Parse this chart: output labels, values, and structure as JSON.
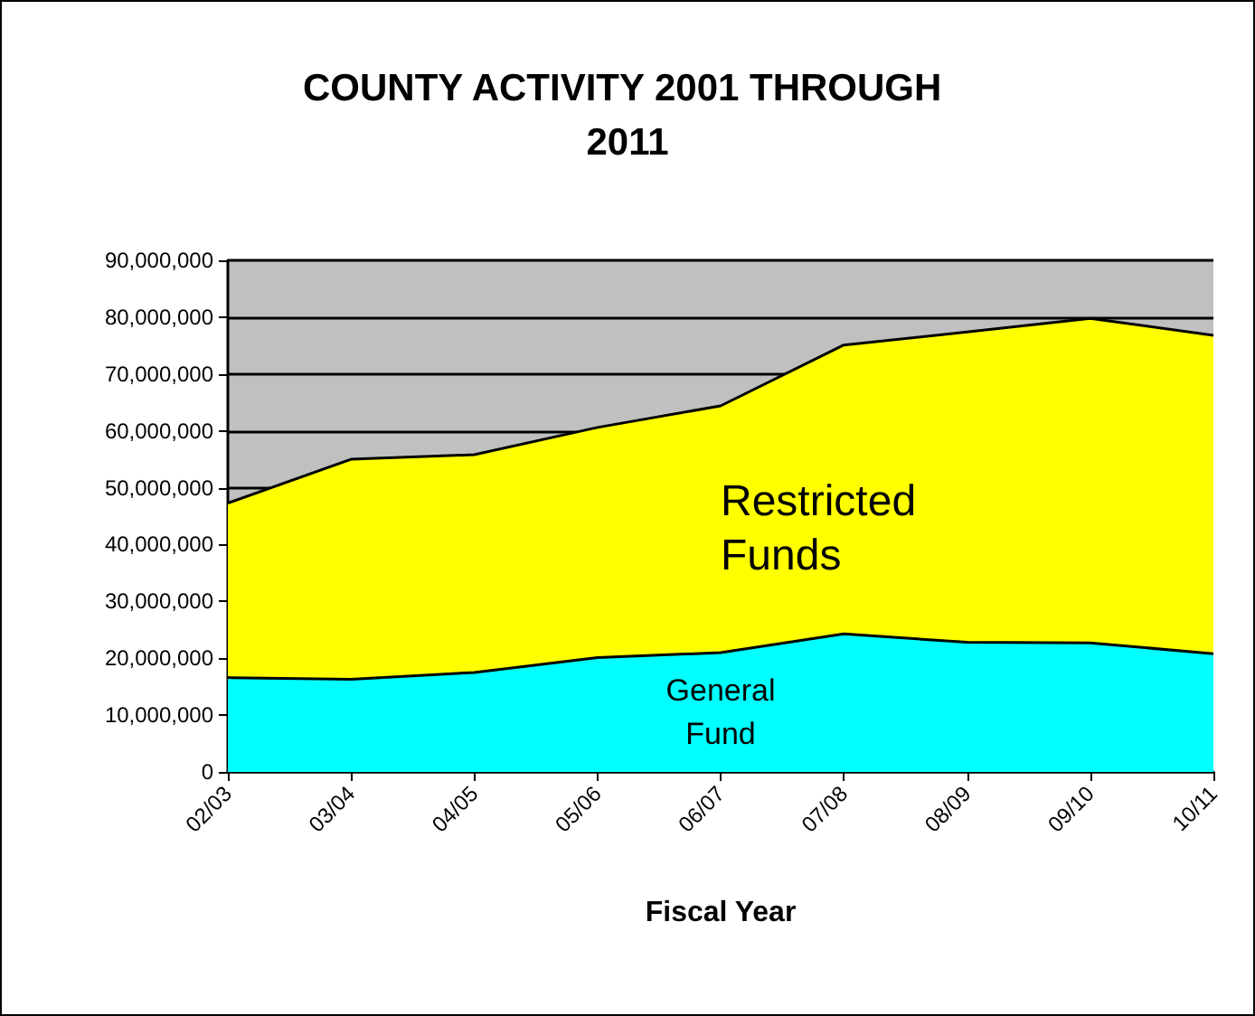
{
  "chart_data": {
    "type": "area",
    "title": "COUNTY ACTIVITY 2001 THROUGH 2011",
    "xlabel": "Fiscal Year",
    "categories": [
      "02/03",
      "03/04",
      "04/05",
      "05/06",
      "06/07",
      "07/08",
      "08/09",
      "09/10",
      "10/11"
    ],
    "stacked": true,
    "series": [
      {
        "name": "General Fund",
        "color": "#00ffff",
        "values": [
          16600000,
          16300000,
          17500000,
          20100000,
          21000000,
          24300000,
          22800000,
          22700000,
          20800000
        ]
      },
      {
        "name": "Restricted Funds",
        "color": "#ffff00",
        "values": [
          30700000,
          38700000,
          38300000,
          40500000,
          43400000,
          50800000,
          54600000,
          57100000,
          56000000
        ]
      }
    ],
    "ylim": [
      0,
      90000000
    ],
    "yticks": [
      0,
      {
        "value": 10000000,
        "label": "10,000,000"
      },
      {
        "value": 20000000,
        "label": "20,000,000"
      },
      {
        "value": 30000000,
        "label": "30,000,000"
      },
      {
        "value": 40000000,
        "label": "40,000,000"
      },
      {
        "value": 50000000,
        "label": "50,000,000"
      },
      {
        "value": 60000000,
        "label": "60,000,000"
      },
      {
        "value": 70000000,
        "label": "70,000,000"
      },
      {
        "value": 80000000,
        "label": "80,000,000"
      },
      {
        "value": 90000000,
        "label": "90,000,000"
      }
    ],
    "grid": "y",
    "legend": false
  }
}
